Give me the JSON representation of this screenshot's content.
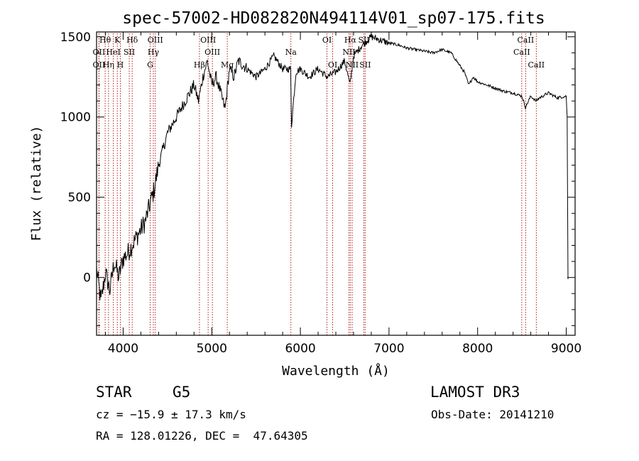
{
  "chart_data": {
    "type": "line",
    "title": "spec-57002-HD082820N494114V01_sp07-175.fits",
    "xlabel": "Wavelength (Å)",
    "ylabel": "Flux (relative)",
    "xlim": [
      3700,
      9100
    ],
    "ylim": [
      -360,
      1530
    ],
    "xticks": [
      4000,
      5000,
      6000,
      7000,
      8000,
      9000
    ],
    "yticks": [
      0,
      500,
      1000,
      1500
    ],
    "xtick_labels": [
      "4000",
      "5000",
      "6000",
      "7000",
      "8000",
      "9000"
    ],
    "ytick_labels": [
      "0",
      "500",
      "1000",
      "1500"
    ],
    "series": [
      {
        "name": "flux",
        "x": [
          3700,
          3750,
          3800,
          3850,
          3900,
          3950,
          4000,
          4050,
          4100,
          4150,
          4200,
          4250,
          4300,
          4350,
          4400,
          4450,
          4500,
          4550,
          4600,
          4650,
          4700,
          4750,
          4800,
          4850,
          4900,
          4950,
          5000,
          5050,
          5100,
          5150,
          5200,
          5250,
          5300,
          5400,
          5500,
          5600,
          5700,
          5800,
          5890,
          5900,
          5950,
          6000,
          6100,
          6200,
          6300,
          6400,
          6500,
          6560,
          6600,
          6700,
          6800,
          6900,
          7000,
          7100,
          7200,
          7300,
          7400,
          7500,
          7600,
          7700,
          7750,
          7800,
          7850,
          7900,
          7950,
          8000,
          8100,
          8200,
          8300,
          8400,
          8500,
          8540,
          8600,
          8660,
          8700,
          8800,
          8900,
          9000,
          9010,
          9020
        ],
        "y": [
          50,
          -150,
          30,
          -80,
          100,
          0,
          120,
          150,
          200,
          250,
          300,
          350,
          450,
          550,
          700,
          800,
          900,
          950,
          1000,
          1050,
          1100,
          1150,
          1200,
          1100,
          1250,
          1350,
          1200,
          1250,
          1150,
          1050,
          1300,
          1250,
          1350,
          1300,
          1250,
          1300,
          1380,
          1300,
          1300,
          950,
          1280,
          1300,
          1250,
          1300,
          1250,
          1280,
          1350,
          1200,
          1380,
          1450,
          1500,
          1480,
          1460,
          1450,
          1430,
          1420,
          1410,
          1400,
          1420,
          1400,
          1360,
          1320,
          1280,
          1200,
          1250,
          1220,
          1200,
          1180,
          1160,
          1150,
          1130,
          1060,
          1130,
          1100,
          1120,
          1150,
          1120,
          1130,
          1000,
          -10
        ]
      }
    ],
    "line_markers": [
      {
        "label": "Hθ",
        "x": 3797,
        "row": 1
      },
      {
        "label": "OII",
        "x": 3727,
        "row": 2
      },
      {
        "label": "OII",
        "x": 3727,
        "row": 3
      },
      {
        "label": "K",
        "x": 3934,
        "row": 1
      },
      {
        "label": "HeI",
        "x": 3889,
        "row": 2
      },
      {
        "label": "Hη",
        "x": 3835,
        "row": 3
      },
      {
        "label": "SII",
        "x": 4069,
        "row": 2
      },
      {
        "label": "H",
        "x": 3968,
        "row": 3
      },
      {
        "label": "Hδ",
        "x": 4102,
        "row": 1
      },
      {
        "label": "OIII",
        "x": 4363,
        "row": 1
      },
      {
        "label": "Hγ",
        "x": 4341,
        "row": 2
      },
      {
        "label": "G",
        "x": 4305,
        "row": 3
      },
      {
        "label": "OIII",
        "x": 4959,
        "row": 1
      },
      {
        "label": "OIII",
        "x": 5007,
        "row": 2
      },
      {
        "label": "Hβ",
        "x": 4861,
        "row": 3
      },
      {
        "label": "Mg",
        "x": 5175,
        "row": 3
      },
      {
        "label": "Na",
        "x": 5893,
        "row": 2
      },
      {
        "label": "OI",
        "x": 6300,
        "row": 1
      },
      {
        "label": "OI",
        "x": 6364,
        "row": 3
      },
      {
        "label": "Hα",
        "x": 6563,
        "row": 1
      },
      {
        "label": "NII",
        "x": 6548,
        "row": 2
      },
      {
        "label": "NII",
        "x": 6584,
        "row": 3
      },
      {
        "label": "SII",
        "x": 6717,
        "row": 1
      },
      {
        "label": "SII",
        "x": 6731,
        "row": 3
      },
      {
        "label": "CaII",
        "x": 8542,
        "row": 1
      },
      {
        "label": "CaII",
        "x": 8498,
        "row": 2
      },
      {
        "label": "CaII",
        "x": 8662,
        "row": 3
      }
    ]
  },
  "info": {
    "object_type": "STAR",
    "subclass": "G5",
    "survey": "LAMOST DR3",
    "redshift": "cz = −15.9 ± 17.3 km/s",
    "obs_date": "Obs-Date: 20141210",
    "coords": "RA = 128.01226, DEC =  47.64305"
  },
  "colors": {
    "marker": "#aa0000",
    "axis": "#000000",
    "spectrum": "#000000"
  }
}
